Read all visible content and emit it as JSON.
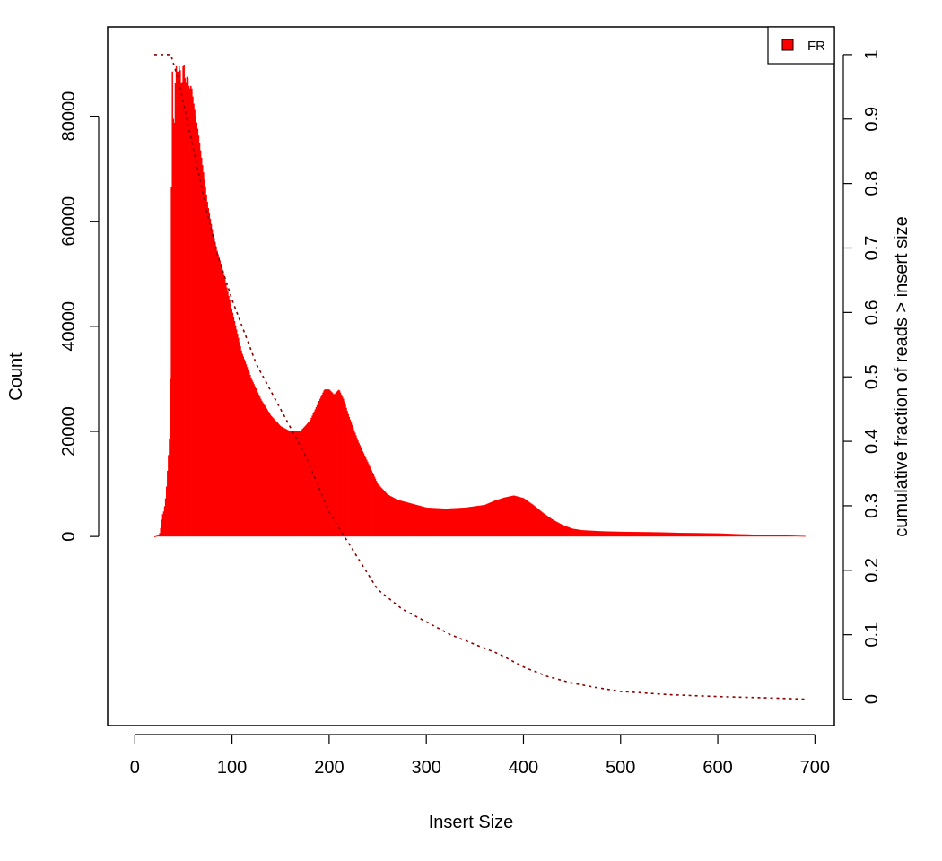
{
  "chart_data": {
    "type": "bar",
    "xlabel": "Insert Size",
    "ylabel": "Count",
    "ylabel_right": "cumulative fraction of reads > insert size",
    "xlim": [
      -28,
      720
    ],
    "ylim": [
      -36000,
      97000
    ],
    "ylim_right": [
      -0.041,
      1.043
    ],
    "x_ticks": [
      0,
      100,
      200,
      300,
      400,
      500,
      600,
      700
    ],
    "y_ticks": [
      0,
      20000,
      40000,
      60000,
      80000
    ],
    "y_ticks_right": [
      0,
      0.1,
      0.2,
      0.3,
      0.4,
      0.5,
      0.6,
      0.7,
      0.8,
      0.9,
      1
    ],
    "x_tick_labels": [
      "0",
      "100",
      "200",
      "300",
      "400",
      "500",
      "600",
      "700"
    ],
    "y_tick_labels": [
      "0",
      "20000",
      "40000",
      "60000",
      "80000"
    ],
    "y_tick_labels_right": [
      "0",
      "0.1",
      "0.2",
      "0.3",
      "0.4",
      "0.5",
      "0.6",
      "0.7",
      "0.8",
      "0.9",
      "1"
    ],
    "legend": {
      "position": "top-right",
      "entries": [
        "FR"
      ]
    },
    "grid": false,
    "colors": {
      "bars": "#ff0000",
      "cumulative_line": "#8b0000",
      "legend_swatch": "#ff0000"
    },
    "series": [
      {
        "name": "FR",
        "kind": "histogram",
        "x": [
          20,
          24,
          26,
          28,
          30,
          32,
          34,
          36,
          37,
          38,
          40,
          42,
          44,
          46,
          48,
          50,
          52,
          54,
          56,
          58,
          60,
          65,
          70,
          75,
          80,
          85,
          90,
          95,
          100,
          110,
          120,
          130,
          140,
          150,
          160,
          170,
          175,
          180,
          185,
          190,
          195,
          200,
          205,
          210,
          215,
          220,
          230,
          240,
          250,
          260,
          270,
          280,
          290,
          300,
          320,
          340,
          360,
          370,
          380,
          390,
          400,
          410,
          420,
          430,
          440,
          450,
          460,
          480,
          500,
          520,
          540,
          560,
          580,
          600,
          620,
          640,
          660,
          680,
          690
        ],
        "values": [
          0,
          200,
          800,
          4000,
          5000,
          8000,
          14000,
          20000,
          40000,
          93000,
          75000,
          90000,
          88000,
          90000,
          85000,
          91000,
          86000,
          88000,
          85000,
          86000,
          83000,
          77000,
          70000,
          63000,
          58000,
          54000,
          51000,
          47000,
          43000,
          35000,
          30000,
          26000,
          23000,
          21000,
          20000,
          20000,
          21000,
          22000,
          24000,
          26000,
          28000,
          28000,
          27000,
          28000,
          26000,
          23000,
          18000,
          14000,
          10000,
          8000,
          7000,
          6500,
          6000,
          5500,
          5300,
          5500,
          6000,
          6800,
          7400,
          7800,
          7300,
          6000,
          4500,
          3200,
          2200,
          1500,
          1200,
          1000,
          900,
          850,
          800,
          700,
          650,
          600,
          450,
          350,
          250,
          150,
          100
        ]
      },
      {
        "name": "cumulative",
        "kind": "line",
        "x": [
          20,
          37,
          45,
          55,
          65,
          75,
          85,
          100,
          125,
          150,
          175,
          200,
          225,
          250,
          275,
          300,
          325,
          350,
          375,
          400,
          425,
          450,
          475,
          500,
          550,
          600,
          650,
          690
        ],
        "values": [
          1,
          1,
          0.96,
          0.89,
          0.82,
          0.75,
          0.69,
          0.62,
          0.52,
          0.45,
          0.38,
          0.29,
          0.23,
          0.17,
          0.14,
          0.12,
          0.1,
          0.085,
          0.07,
          0.05,
          0.035,
          0.025,
          0.018,
          0.012,
          0.007,
          0.004,
          0.002,
          0
        ]
      }
    ]
  }
}
